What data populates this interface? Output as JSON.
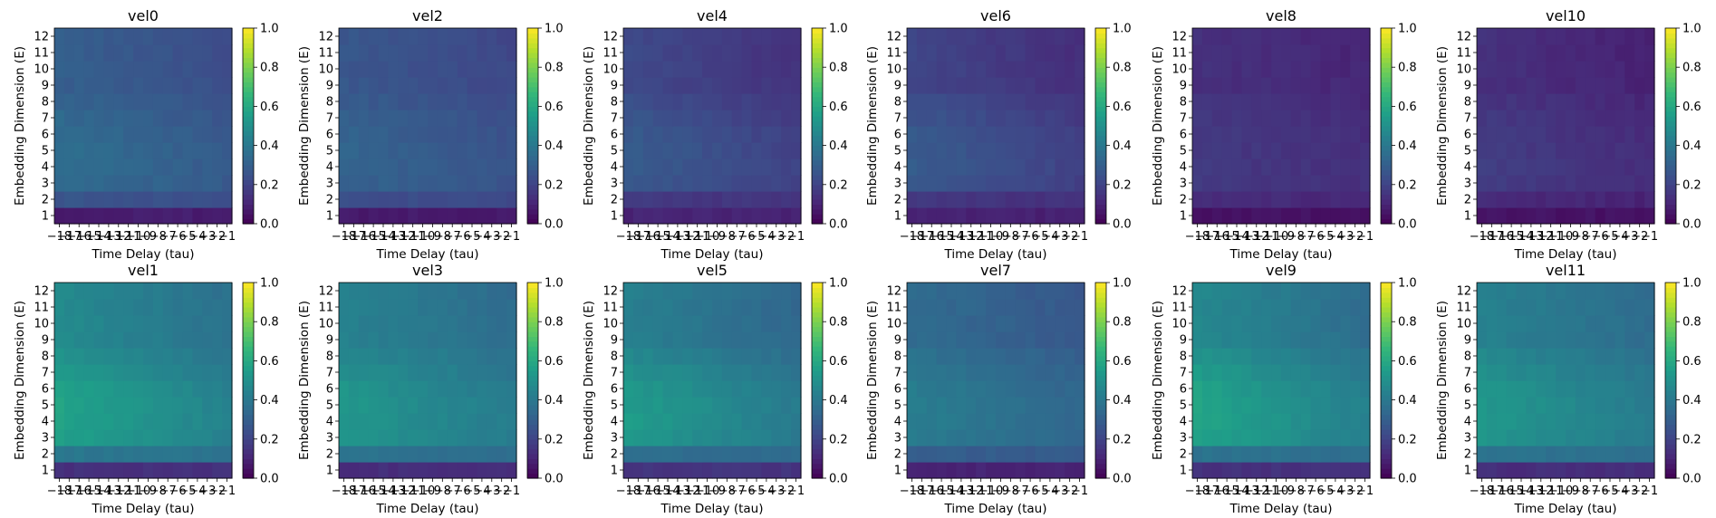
{
  "figure": {
    "colormap": "viridis",
    "tick_color": "#000000"
  },
  "chart_data": [
    {
      "type": "heatmap",
      "title": "vel0",
      "xlabel": "Time Delay (tau)",
      "ylabel": "Embedding Dimension (E)",
      "x_tick_labels": [
        "−18",
        "−17",
        "−16",
        "−15",
        "−14",
        "−13",
        "−12",
        "−11",
        "−10",
        "−9",
        "−8",
        "−7",
        "−6",
        "−5",
        "−4",
        "−3",
        "−2",
        "−1"
      ],
      "y_tick_labels": [
        "1",
        "2",
        "3",
        "4",
        "5",
        "6",
        "7",
        "8",
        "9",
        "10",
        "11",
        "12"
      ],
      "colorbar_range": [
        0,
        1
      ],
      "colorbar_ticks": [
        "0.0",
        "0.2",
        "0.4",
        "0.6",
        "0.8",
        "1.0"
      ],
      "base": 0.26,
      "spread": 0.06,
      "left_boost": 0.04,
      "low_rows": 0.08
    },
    {
      "type": "heatmap",
      "title": "vel2",
      "xlabel": "Time Delay (tau)",
      "ylabel": "Embedding Dimension (E)",
      "x_tick_labels": [
        "−18",
        "−17",
        "−16",
        "−15",
        "−14",
        "−13",
        "−12",
        "−11",
        "−10",
        "−9",
        "−8",
        "−7",
        "−6",
        "−5",
        "−4",
        "−3",
        "−2",
        "−1"
      ],
      "y_tick_labels": [
        "1",
        "2",
        "3",
        "4",
        "5",
        "6",
        "7",
        "8",
        "9",
        "10",
        "11",
        "12"
      ],
      "colorbar_range": [
        0,
        1
      ],
      "colorbar_ticks": [
        "0.0",
        "0.2",
        "0.4",
        "0.6",
        "0.8",
        "1.0"
      ],
      "base": 0.24,
      "spread": 0.05,
      "left_boost": 0.03,
      "low_rows": 0.07
    },
    {
      "type": "heatmap",
      "title": "vel4",
      "xlabel": "Time Delay (tau)",
      "ylabel": "Embedding Dimension (E)",
      "x_tick_labels": [
        "−18",
        "−17",
        "−16",
        "−15",
        "−14",
        "−13",
        "−12",
        "−11",
        "−10",
        "−9",
        "−8",
        "−7",
        "−6",
        "−5",
        "−4",
        "−3",
        "−2",
        "−1"
      ],
      "y_tick_labels": [
        "1",
        "2",
        "3",
        "4",
        "5",
        "6",
        "7",
        "8",
        "9",
        "10",
        "11",
        "12"
      ],
      "colorbar_range": [
        0,
        1
      ],
      "colorbar_ticks": [
        "0.0",
        "0.2",
        "0.4",
        "0.6",
        "0.8",
        "1.0"
      ],
      "base": 0.17,
      "spread": 0.07,
      "left_boost": 0.05,
      "low_rows": 0.1
    },
    {
      "type": "heatmap",
      "title": "vel6",
      "xlabel": "Time Delay (tau)",
      "ylabel": "Embedding Dimension (E)",
      "x_tick_labels": [
        "−18",
        "−17",
        "−16",
        "−15",
        "−14",
        "−13",
        "−12",
        "−11",
        "−10",
        "−9",
        "−8",
        "−7",
        "−6",
        "−5",
        "−4",
        "−3",
        "−2",
        "−1"
      ],
      "y_tick_labels": [
        "1",
        "2",
        "3",
        "4",
        "5",
        "6",
        "7",
        "8",
        "9",
        "10",
        "11",
        "12"
      ],
      "colorbar_range": [
        0,
        1
      ],
      "colorbar_ticks": [
        "0.0",
        "0.2",
        "0.4",
        "0.6",
        "0.8",
        "1.0"
      ],
      "base": 0.16,
      "spread": 0.08,
      "left_boost": 0.05,
      "low_rows": 0.09
    },
    {
      "type": "heatmap",
      "title": "vel8",
      "xlabel": "Time Delay (tau)",
      "ylabel": "Embedding Dimension (E)",
      "x_tick_labels": [
        "−18",
        "−17",
        "−16",
        "−15",
        "−14",
        "−13",
        "−12",
        "−11",
        "−10",
        "−9",
        "−8",
        "−7",
        "−6",
        "−5",
        "−4",
        "−3",
        "−2",
        "−1"
      ],
      "y_tick_labels": [
        "1",
        "2",
        "3",
        "4",
        "5",
        "6",
        "7",
        "8",
        "9",
        "10",
        "11",
        "12"
      ],
      "colorbar_range": [
        0,
        1
      ],
      "colorbar_ticks": [
        "0.0",
        "0.2",
        "0.4",
        "0.6",
        "0.8",
        "1.0"
      ],
      "base": 0.13,
      "spread": 0.03,
      "left_boost": 0.01,
      "low_rows": 0.05
    },
    {
      "type": "heatmap",
      "title": "vel10",
      "xlabel": "Time Delay (tau)",
      "ylabel": "Embedding Dimension (E)",
      "x_tick_labels": [
        "−18",
        "−17",
        "−16",
        "−15",
        "−14",
        "−13",
        "−12",
        "−11",
        "−10",
        "−9",
        "−8",
        "−7",
        "−6",
        "−5",
        "−4",
        "−3",
        "−2",
        "−1"
      ],
      "y_tick_labels": [
        "1",
        "2",
        "3",
        "4",
        "5",
        "6",
        "7",
        "8",
        "9",
        "10",
        "11",
        "12"
      ],
      "colorbar_range": [
        0,
        1
      ],
      "colorbar_ticks": [
        "0.0",
        "0.2",
        "0.4",
        "0.6",
        "0.8",
        "1.0"
      ],
      "base": 0.12,
      "spread": 0.04,
      "left_boost": 0.02,
      "low_rows": 0.05
    },
    {
      "type": "heatmap",
      "title": "vel1",
      "xlabel": "Time Delay (tau)",
      "ylabel": "Embedding Dimension (E)",
      "x_tick_labels": [
        "−18",
        "−17",
        "−16",
        "−15",
        "−14",
        "−13",
        "−12",
        "−11",
        "−10",
        "−9",
        "−8",
        "−7",
        "−6",
        "−5",
        "−4",
        "−3",
        "−2",
        "−1"
      ],
      "y_tick_labels": [
        "1",
        "2",
        "3",
        "4",
        "5",
        "6",
        "7",
        "8",
        "9",
        "10",
        "11",
        "12"
      ],
      "colorbar_range": [
        0,
        1
      ],
      "colorbar_ticks": [
        "0.0",
        "0.2",
        "0.4",
        "0.6",
        "0.8",
        "1.0"
      ],
      "base": 0.4,
      "spread": 0.1,
      "left_boost": 0.08,
      "low_rows": 0.14
    },
    {
      "type": "heatmap",
      "title": "vel3",
      "xlabel": "Time Delay (tau)",
      "ylabel": "Embedding Dimension (E)",
      "x_tick_labels": [
        "−18",
        "−17",
        "−16",
        "−15",
        "−14",
        "−13",
        "−12",
        "−11",
        "−10",
        "−9",
        "−8",
        "−7",
        "−6",
        "−5",
        "−4",
        "−3",
        "−2",
        "−1"
      ],
      "y_tick_labels": [
        "1",
        "2",
        "3",
        "4",
        "5",
        "6",
        "7",
        "8",
        "9",
        "10",
        "11",
        "12"
      ],
      "colorbar_range": [
        0,
        1
      ],
      "colorbar_ticks": [
        "0.0",
        "0.2",
        "0.4",
        "0.6",
        "0.8",
        "1.0"
      ],
      "base": 0.38,
      "spread": 0.09,
      "left_boost": 0.06,
      "low_rows": 0.13
    },
    {
      "type": "heatmap",
      "title": "vel5",
      "xlabel": "Time Delay (tau)",
      "ylabel": "Embedding Dimension (E)",
      "x_tick_labels": [
        "−18",
        "−17",
        "−16",
        "−15",
        "−14",
        "−13",
        "−12",
        "−11",
        "−10",
        "−9",
        "−8",
        "−7",
        "−6",
        "−5",
        "−4",
        "−3",
        "−2",
        "−1"
      ],
      "y_tick_labels": [
        "1",
        "2",
        "3",
        "4",
        "5",
        "6",
        "7",
        "8",
        "9",
        "10",
        "11",
        "12"
      ],
      "colorbar_range": [
        0,
        1
      ],
      "colorbar_ticks": [
        "0.0",
        "0.2",
        "0.4",
        "0.6",
        "0.8",
        "1.0"
      ],
      "base": 0.36,
      "spread": 0.12,
      "left_boost": 0.07,
      "low_rows": 0.15
    },
    {
      "type": "heatmap",
      "title": "vel7",
      "xlabel": "Time Delay (tau)",
      "ylabel": "Embedding Dimension (E)",
      "x_tick_labels": [
        "−18",
        "−17",
        "−16",
        "−15",
        "−14",
        "−13",
        "−12",
        "−11",
        "−10",
        "−9",
        "−8",
        "−7",
        "−6",
        "−5",
        "−4",
        "−3",
        "−2",
        "−1"
      ],
      "y_tick_labels": [
        "1",
        "2",
        "3",
        "4",
        "5",
        "6",
        "7",
        "8",
        "9",
        "10",
        "11",
        "12"
      ],
      "colorbar_range": [
        0,
        1
      ],
      "colorbar_ticks": [
        "0.0",
        "0.2",
        "0.4",
        "0.6",
        "0.8",
        "1.0"
      ],
      "base": 0.3,
      "spread": 0.08,
      "left_boost": 0.05,
      "low_rows": 0.1
    },
    {
      "type": "heatmap",
      "title": "vel9",
      "xlabel": "Time Delay (tau)",
      "ylabel": "Embedding Dimension (E)",
      "x_tick_labels": [
        "−18",
        "−17",
        "−16",
        "−15",
        "−14",
        "−13",
        "−12",
        "−11",
        "−10",
        "−9",
        "−8",
        "−7",
        "−6",
        "−5",
        "−4",
        "−3",
        "−2",
        "−1"
      ],
      "y_tick_labels": [
        "1",
        "2",
        "3",
        "4",
        "5",
        "6",
        "7",
        "8",
        "9",
        "10",
        "11",
        "12"
      ],
      "colorbar_range": [
        0,
        1
      ],
      "colorbar_ticks": [
        "0.0",
        "0.2",
        "0.4",
        "0.6",
        "0.8",
        "1.0"
      ],
      "base": 0.38,
      "spread": 0.12,
      "left_boost": 0.09,
      "low_rows": 0.14
    },
    {
      "type": "heatmap",
      "title": "vel11",
      "xlabel": "Time Delay (tau)",
      "ylabel": "Embedding Dimension (E)",
      "x_tick_labels": [
        "−18",
        "−17",
        "−16",
        "−15",
        "−14",
        "−13",
        "−12",
        "−11",
        "−10",
        "−9",
        "−8",
        "−7",
        "−6",
        "−5",
        "−4",
        "−3",
        "−2",
        "−1"
      ],
      "y_tick_labels": [
        "1",
        "2",
        "3",
        "4",
        "5",
        "6",
        "7",
        "8",
        "9",
        "10",
        "11",
        "12"
      ],
      "colorbar_range": [
        0,
        1
      ],
      "colorbar_ticks": [
        "0.0",
        "0.2",
        "0.4",
        "0.6",
        "0.8",
        "1.0"
      ],
      "base": 0.38,
      "spread": 0.09,
      "left_boost": 0.06,
      "low_rows": 0.13
    }
  ]
}
